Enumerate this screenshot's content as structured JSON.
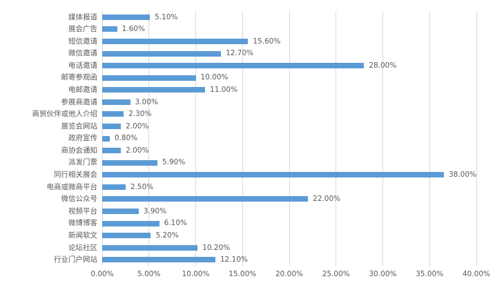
{
  "chart_data": {
    "type": "bar",
    "orientation": "horizontal",
    "title": "",
    "categories": [
      "媒体报道",
      "展会广告",
      "短信邀请",
      "微信邀请",
      "电话邀请",
      "邮寄参观函",
      "电邮邀请",
      "参展商邀请",
      "商贸伙伴或他人介绍",
      "展览会网站",
      "政府宣传",
      "商协会通知",
      "派发门票",
      "同行相关展会",
      "电商或微商平台",
      "微信公众号",
      "视频平台",
      "微博博客",
      "新闻软文",
      "论坛社区",
      "行业门户网站"
    ],
    "values": [
      5.1,
      1.6,
      15.6,
      12.7,
      28.0,
      10.0,
      11.0,
      3.0,
      2.3,
      2.0,
      0.8,
      2.0,
      5.9,
      38.0,
      2.5,
      22.0,
      3.9,
      6.1,
      5.2,
      10.2,
      12.1
    ],
    "value_labels": [
      "5.10%",
      "1.60%",
      "15.60%",
      "12.70%",
      "28.00%",
      "10.00%",
      "11.00%",
      "3.00%",
      "2.30%",
      "2.00%",
      "0.80%",
      "2.00%",
      "5.90%",
      "38.00%",
      "2.50%",
      "22.00%",
      "3.90%",
      "6.10%",
      "5.20%",
      "10.20%",
      "12.10%"
    ],
    "x_ticks": [
      "0.00%",
      "5.00%",
      "10.00%",
      "15.00%",
      "20.00%",
      "25.00%",
      "30.00%",
      "35.00%",
      "40.00%"
    ],
    "x_tick_values": [
      0,
      5,
      10,
      15,
      20,
      25,
      30,
      35,
      40
    ],
    "xlim": [
      0,
      40
    ],
    "xlabel": "",
    "ylabel": "",
    "grid": "vertical",
    "legend": "none",
    "bar_color": "#5B9BD5",
    "gridline_color": "#D9D9D9",
    "text_color": "#595959"
  }
}
